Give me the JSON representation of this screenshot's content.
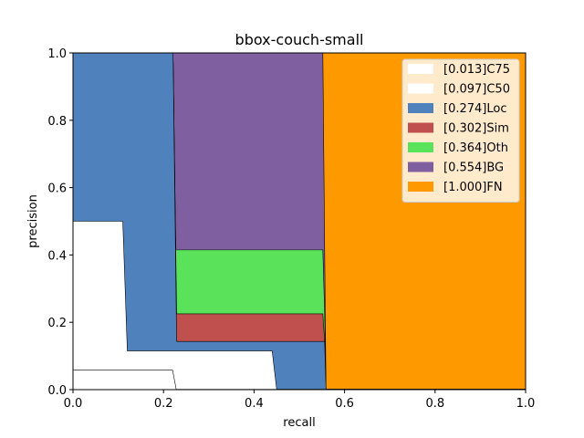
{
  "chart_data": {
    "type": "area",
    "title": "bbox-couch-small",
    "xlabel": "recall",
    "ylabel": "precision",
    "xlim": [
      0,
      1
    ],
    "ylim": [
      0,
      1
    ],
    "xticks": [
      "0.0",
      "0.2",
      "0.4",
      "0.6",
      "0.8",
      "1.0"
    ],
    "yticks": [
      "0.0",
      "0.2",
      "0.4",
      "0.6",
      "0.8",
      "1.0"
    ],
    "legend_position": "top-right",
    "grid": false,
    "series": [
      {
        "name": "[1.000]FN",
        "color": "#ff9900",
        "points": [
          [
            0,
            1
          ],
          [
            1,
            1
          ]
        ]
      },
      {
        "name": "[0.554]BG",
        "color": "#7f5f9f",
        "points": [
          [
            0,
            1
          ],
          [
            0.552,
            1
          ],
          [
            0.556,
            0.415
          ],
          [
            0.559,
            0.001
          ],
          [
            1,
            0.001
          ]
        ]
      },
      {
        "name": "[0.364]Oth",
        "color": "#5ae35a",
        "points": [
          [
            0,
            1
          ],
          [
            0.221,
            1
          ],
          [
            0.227,
            0.415
          ],
          [
            0.552,
            0.415
          ],
          [
            0.556,
            0.225
          ],
          [
            0.559,
            0.001
          ],
          [
            1,
            0.001
          ]
        ]
      },
      {
        "name": "[0.302]Sim",
        "color": "#c0504d",
        "points": [
          [
            0,
            1
          ],
          [
            0.221,
            1
          ],
          [
            0.229,
            0.225
          ],
          [
            0.552,
            0.225
          ],
          [
            0.556,
            0.143
          ],
          [
            0.559,
            0.001
          ],
          [
            1,
            0.001
          ]
        ]
      },
      {
        "name": "[0.274]Loc",
        "color": "#4f81bd",
        "points": [
          [
            0,
            1
          ],
          [
            0.221,
            1
          ],
          [
            0.229,
            0.143
          ],
          [
            0.556,
            0.143
          ],
          [
            0.559,
            0.001
          ],
          [
            1,
            0.001
          ]
        ]
      },
      {
        "name": "[0.097]C50",
        "color": "#ffffff",
        "points": [
          [
            0,
            0.5
          ],
          [
            0.11,
            0.5
          ],
          [
            0.12,
            0.115
          ],
          [
            0.44,
            0.115
          ],
          [
            0.45,
            0.001
          ],
          [
            1,
            0.001
          ]
        ]
      },
      {
        "name": "[0.013]C75",
        "color": "#ffffff",
        "points": [
          [
            0,
            0.058
          ],
          [
            0.22,
            0.058
          ],
          [
            0.228,
            0.001
          ],
          [
            1,
            0.001
          ]
        ]
      }
    ]
  }
}
